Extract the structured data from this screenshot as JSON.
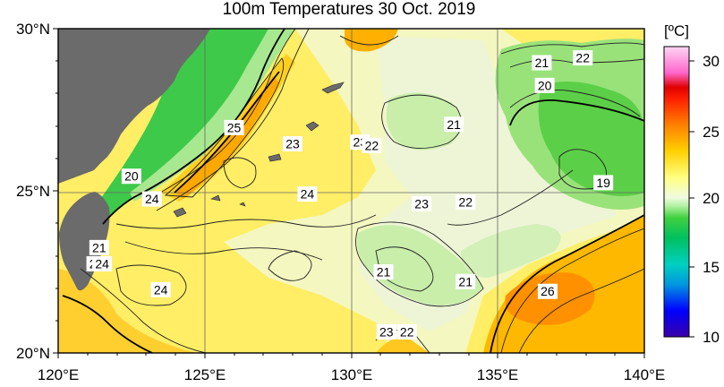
{
  "title": "100m Temperatures  30 Oct. 2019",
  "lat_labels": [
    {
      "text": "30°N",
      "lat": 30
    },
    {
      "text": "25°N",
      "lat": 25
    },
    {
      "text": "20°N",
      "lat": 20
    }
  ],
  "lon_labels": [
    {
      "text": "120°E",
      "lon": 120
    },
    {
      "text": "125°E",
      "lon": 125
    },
    {
      "text": "130°E",
      "lon": 130
    },
    {
      "text": "135°E",
      "lon": 135
    },
    {
      "text": "140°E",
      "lon": 140
    }
  ],
  "colorbar": {
    "unit": "[ºC]",
    "ticks": [
      "30",
      "25",
      "20",
      "15",
      "10"
    ],
    "range": [
      10,
      32
    ]
  },
  "contour_labels": [
    {
      "text": "22",
      "lon": 137.9,
      "lat": 29.1
    },
    {
      "text": "21",
      "lon": 136.5,
      "lat": 28.95
    },
    {
      "text": "20",
      "lon": 136.6,
      "lat": 28.25
    },
    {
      "text": "21",
      "lon": 133.5,
      "lat": 27.05
    },
    {
      "text": "19",
      "lon": 138.6,
      "lat": 25.25
    },
    {
      "text": "25",
      "lon": 126.0,
      "lat": 26.95
    },
    {
      "text": "23",
      "lon": 128.0,
      "lat": 26.45
    },
    {
      "text": "23",
      "lon": 130.3,
      "lat": 26.5
    },
    {
      "text": "22",
      "lon": 130.7,
      "lat": 26.4
    },
    {
      "text": "20",
      "lon": 122.5,
      "lat": 25.45
    },
    {
      "text": "24",
      "lon": 123.2,
      "lat": 24.75
    },
    {
      "text": "24",
      "lon": 128.5,
      "lat": 24.9
    },
    {
      "text": "23",
      "lon": 132.4,
      "lat": 24.6
    },
    {
      "text": "22",
      "lon": 133.9,
      "lat": 24.65
    },
    {
      "text": "21",
      "lon": 121.4,
      "lat": 23.25
    },
    {
      "text": "23",
      "lon": 121.3,
      "lat": 22.75
    },
    {
      "text": "24",
      "lon": 121.5,
      "lat": 22.75
    },
    {
      "text": "21",
      "lon": 131.1,
      "lat": 22.5
    },
    {
      "text": "21",
      "lon": 133.9,
      "lat": 22.2
    },
    {
      "text": "24",
      "lon": 123.5,
      "lat": 21.95
    },
    {
      "text": "26",
      "lon": 136.7,
      "lat": 21.9
    },
    {
      "text": "23",
      "lon": 131.2,
      "lat": 20.65
    },
    {
      "text": "22",
      "lon": 131.9,
      "lat": 20.65
    }
  ]
}
